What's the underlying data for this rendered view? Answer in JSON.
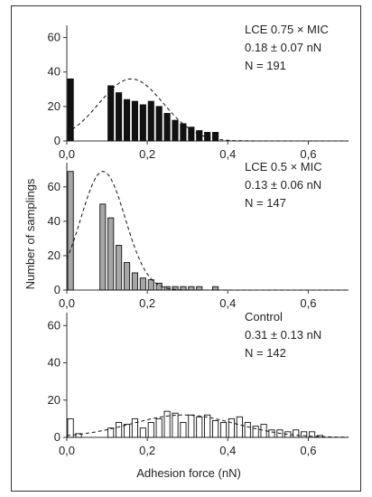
{
  "ylabel": "Number of samplings",
  "xlabel": "Adhesion force (nN)",
  "chart_data": [
    {
      "type": "bar",
      "label": "LCE 0.75 × MIC",
      "stat": "0.18 ± 0.07 nN",
      "n": "N = 191",
      "fill": "#111111",
      "x": [
        0.0,
        0.1,
        0.12,
        0.14,
        0.16,
        0.18,
        0.2,
        0.22,
        0.24,
        0.26,
        0.28,
        0.3,
        0.32,
        0.34,
        0.36
      ],
      "values": [
        36,
        32,
        28,
        24,
        23,
        21,
        23,
        20,
        16,
        12,
        10,
        8,
        6,
        5,
        5
      ],
      "xlim": [
        0,
        0.7
      ],
      "ylim": [
        0,
        65
      ],
      "xticks": [
        "0,0",
        "0,2",
        "0,4",
        "0,6"
      ],
      "yticks": [
        "0",
        "20",
        "40",
        "60"
      ],
      "curve_mean": 0.16,
      "curve_sd": 0.08,
      "curve_peak": 36
    },
    {
      "type": "bar",
      "label": "LCE 0.5 × MIC",
      "stat": "0.13 ± 0.06 nN",
      "n": "N = 147",
      "fill": "#a6a6a6",
      "x": [
        0.0,
        0.08,
        0.1,
        0.12,
        0.14,
        0.16,
        0.18,
        0.2,
        0.22,
        0.24,
        0.26,
        0.28,
        0.3,
        0.32,
        0.36
      ],
      "values": [
        69,
        50,
        42,
        26,
        16,
        10,
        7,
        6,
        4,
        2,
        2,
        2,
        2,
        2,
        2
      ],
      "xlim": [
        0,
        0.7
      ],
      "ylim": [
        0,
        72
      ],
      "xticks": [
        "0,0",
        "0,2",
        "0,4",
        "0,6"
      ],
      "yticks": [
        "0",
        "20",
        "40",
        "60"
      ],
      "curve_mean": 0.09,
      "curve_sd": 0.055,
      "curve_peak": 69
    },
    {
      "type": "bar",
      "label": "Control",
      "stat": "0.31 ± 0.13 nN",
      "n": "N = 142",
      "fill": "#ffffff",
      "x": [
        0.0,
        0.02,
        0.1,
        0.12,
        0.14,
        0.16,
        0.18,
        0.2,
        0.22,
        0.24,
        0.26,
        0.28,
        0.3,
        0.32,
        0.34,
        0.36,
        0.38,
        0.4,
        0.42,
        0.44,
        0.46,
        0.48,
        0.5,
        0.52,
        0.54,
        0.56,
        0.58,
        0.6,
        0.62
      ],
      "values": [
        10,
        2,
        5,
        8,
        7,
        10,
        5,
        8,
        10,
        14,
        13,
        8,
        12,
        11,
        12,
        9,
        8,
        10,
        11,
        8,
        6,
        7,
        4,
        4,
        3,
        4,
        3,
        3,
        1
      ],
      "xlim": [
        0,
        0.7
      ],
      "ylim": [
        0,
        65
      ],
      "xticks": [
        "0,0",
        "0,2",
        "0,4",
        "0,6"
      ],
      "yticks": [
        "0",
        "20",
        "40",
        "60"
      ],
      "curve_mean": 0.29,
      "curve_sd": 0.13,
      "curve_peak": 12
    }
  ]
}
